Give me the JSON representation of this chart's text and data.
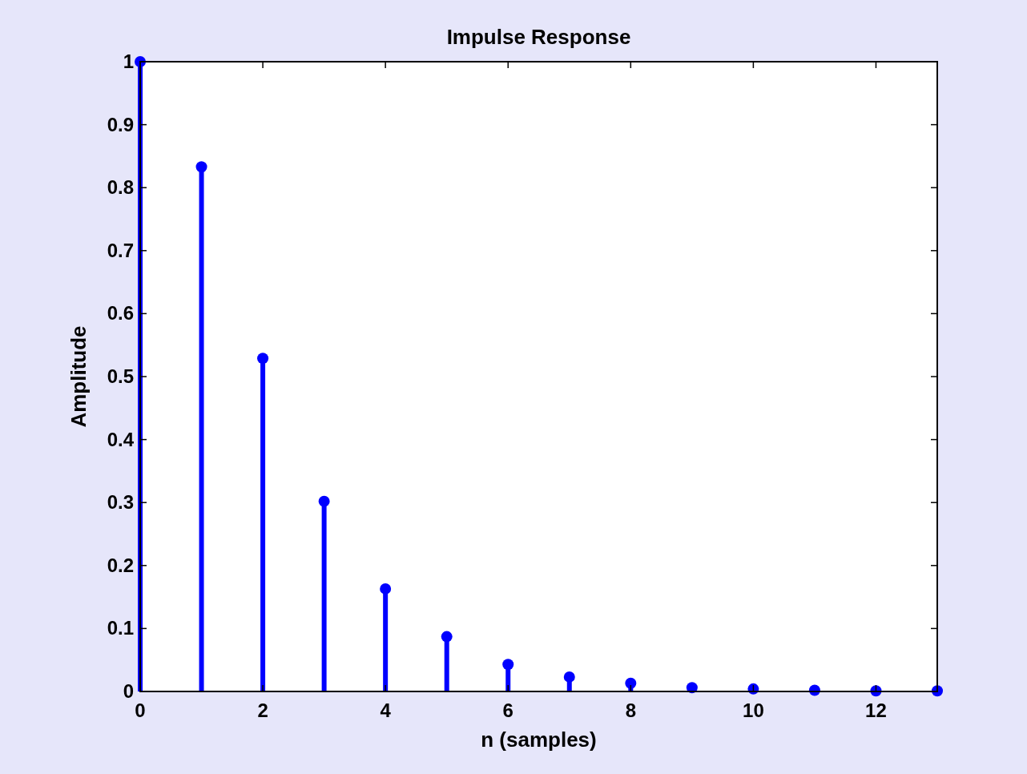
{
  "chart_data": {
    "type": "lollipop",
    "title": "Impulse Response",
    "xlabel": "n (samples)",
    "ylabel": "Amplitude",
    "x": [
      0,
      1,
      2,
      3,
      4,
      5,
      6,
      7,
      8,
      9,
      10,
      11,
      12,
      13
    ],
    "series": [
      {
        "color": "#0000ff",
        "values": [
          1,
          0.833,
          0.529,
          0.302,
          0.163,
          0.087,
          0.043,
          0.023,
          0.013,
          0.006,
          0.004,
          0.002,
          0.001,
          0.001
        ]
      }
    ],
    "xlim": [
      0,
      13
    ],
    "xticks": [
      0,
      2,
      4,
      6,
      8,
      10,
      12
    ],
    "ylim": [
      0,
      1
    ],
    "yticks": [
      0,
      0.1,
      0.2,
      0.3,
      0.4,
      0.5,
      0.6,
      0.7,
      0.8,
      0.9,
      1
    ],
    "marker": "circle",
    "grid": false
  }
}
